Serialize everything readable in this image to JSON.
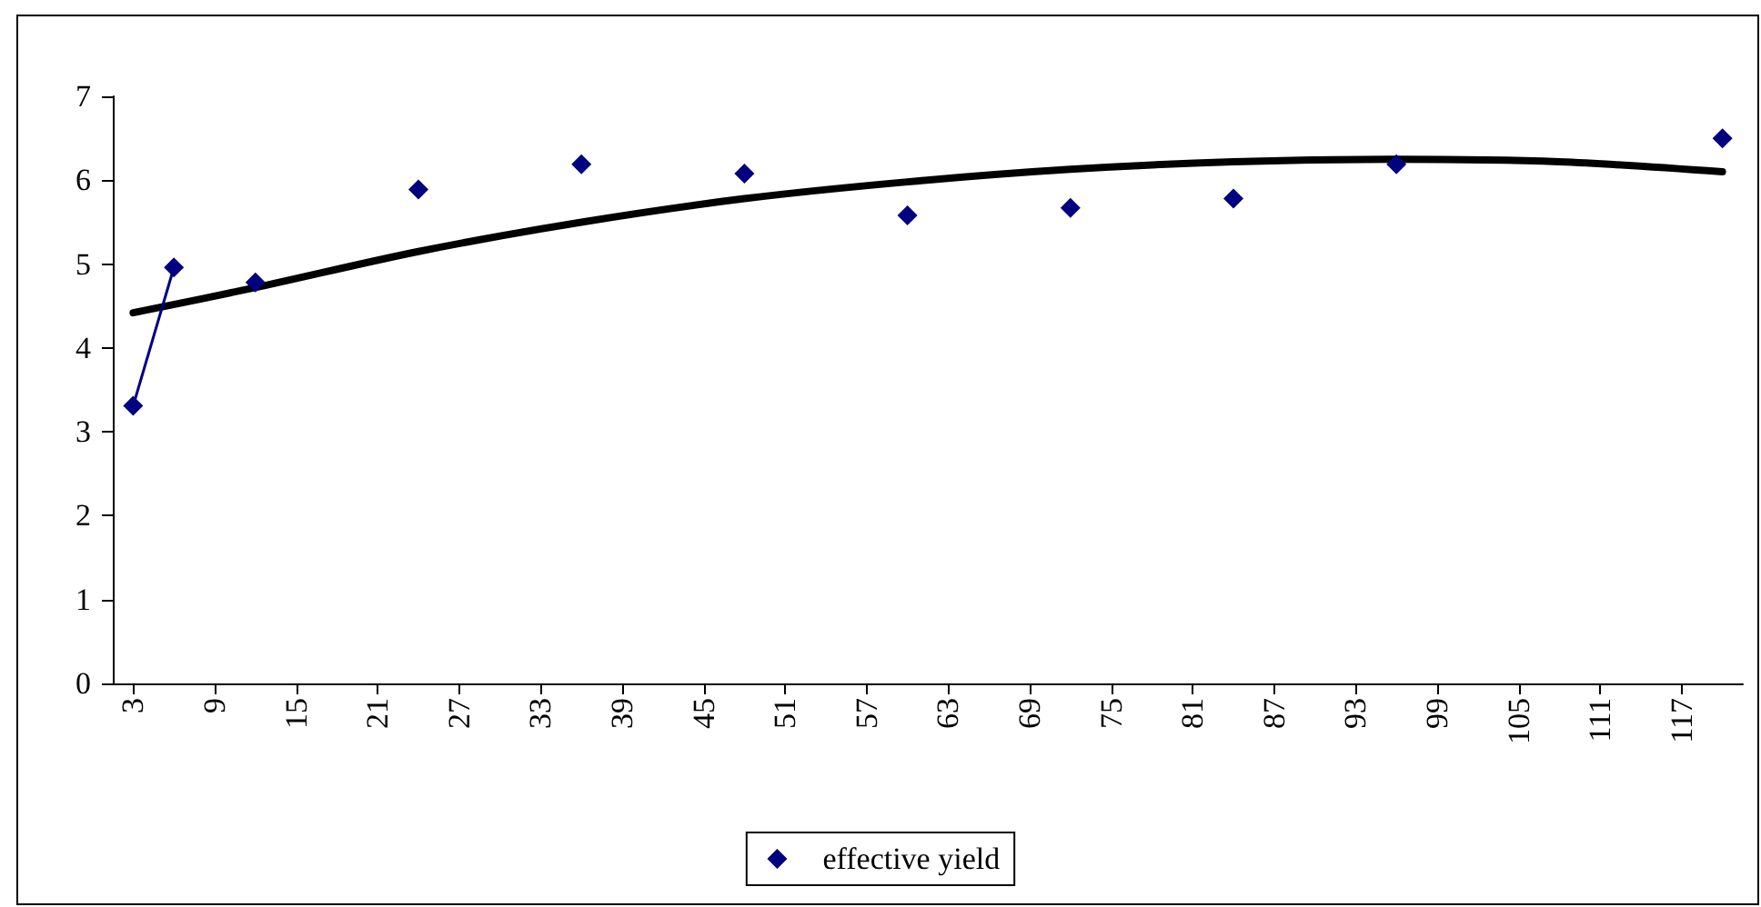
{
  "chart_data": {
    "type": "line",
    "x": [
      3,
      6,
      9,
      12,
      15,
      18,
      21,
      24,
      27,
      30,
      33,
      36,
      39,
      42,
      45,
      48,
      51,
      54,
      57,
      60,
      63,
      66,
      69,
      72,
      75,
      78,
      81,
      84,
      87,
      90,
      93,
      96,
      99,
      102,
      105,
      108,
      111,
      114,
      117,
      120
    ],
    "series": [
      {
        "name": "effective yield",
        "color": "#000080",
        "values": [
          3.31,
          4.96,
          null,
          4.78,
          null,
          null,
          null,
          5.89,
          null,
          null,
          null,
          6.19,
          null,
          null,
          null,
          6.08,
          null,
          null,
          null,
          5.58,
          null,
          null,
          null,
          5.67,
          null,
          null,
          null,
          5.78,
          null,
          null,
          null,
          6.19,
          null,
          null,
          null,
          null,
          null,
          null,
          null,
          6.5
        ]
      },
      {
        "type": "line",
        "color": "#000000",
        "marker": "none",
        "x": [
          3,
          12,
          24,
          36,
          48,
          60,
          72,
          84,
          96,
          108,
          120
        ],
        "values": [
          4.42,
          4.72,
          5.15,
          5.5,
          5.78,
          5.98,
          6.13,
          6.22,
          6.25,
          6.22,
          6.1
        ]
      }
    ],
    "xlim": [
      1.5,
      121.5
    ],
    "xticks": [
      3,
      9,
      15,
      21,
      27,
      33,
      39,
      45,
      51,
      57,
      63,
      69,
      75,
      81,
      87,
      93,
      99,
      105,
      111,
      117
    ],
    "ylim": [
      0,
      7
    ],
    "yticks": [
      0,
      1,
      2,
      3,
      4,
      5,
      6,
      7
    ],
    "grid": false,
    "legend": "bottom",
    "marker": "diamond",
    "line_style": "solid"
  }
}
